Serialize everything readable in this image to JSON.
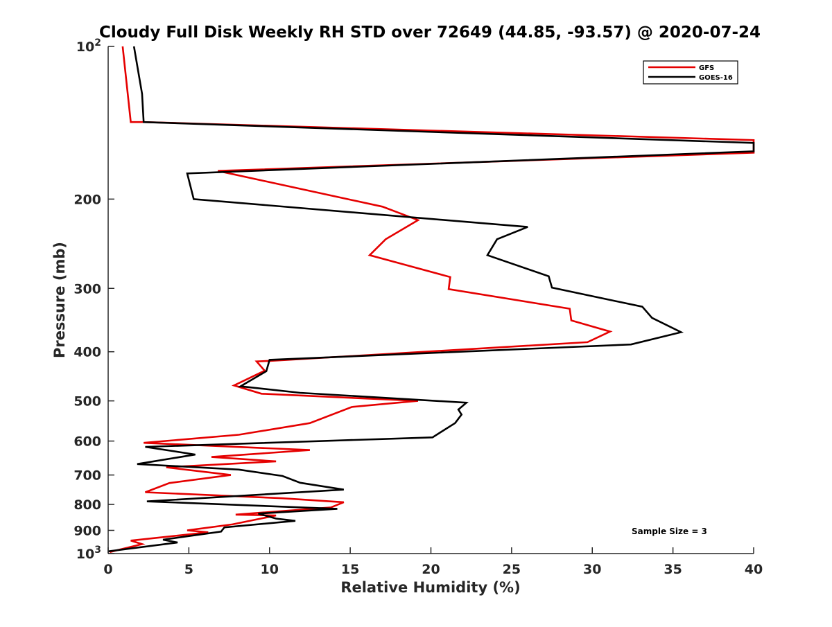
{
  "chart_data": {
    "type": "line",
    "title": "Cloudy Full Disk Weekly RH STD over 72649 (44.85, -93.57) @ 2020-07-24",
    "xlabel": "Relative Humidity (%)",
    "ylabel": "Pressure (mb)",
    "xlim": [
      0,
      40
    ],
    "ylim": [
      100,
      1000
    ],
    "yscale": "log",
    "yreversed": true,
    "xticks": [
      0,
      5,
      10,
      15,
      20,
      25,
      30,
      35,
      40
    ],
    "yticks": [
      {
        "value": 100,
        "base": "10",
        "exp": "2"
      },
      {
        "value": 200,
        "label": "200"
      },
      {
        "value": 300,
        "label": "300"
      },
      {
        "value": 400,
        "label": "400"
      },
      {
        "value": 500,
        "label": "500"
      },
      {
        "value": 600,
        "label": "600"
      },
      {
        "value": 700,
        "label": "700"
      },
      {
        "value": 800,
        "label": "800"
      },
      {
        "value": 900,
        "label": "900"
      },
      {
        "value": 1000,
        "base": "10",
        "exp": "3"
      }
    ],
    "legend_position": "top-right",
    "annotation": "Sample Size = 3",
    "series": [
      {
        "name": "GFS",
        "color": "#e50000",
        "points": [
          [
            0.9,
            100
          ],
          [
            1.4,
            141
          ],
          [
            2.2,
            141
          ],
          [
            40,
            153
          ],
          [
            40,
            162
          ],
          [
            6.8,
            176
          ],
          [
            17,
            207
          ],
          [
            19.2,
            220
          ],
          [
            17.2,
            240
          ],
          [
            16.2,
            258
          ],
          [
            21.2,
            285
          ],
          [
            21.1,
            301
          ],
          [
            28.6,
            329
          ],
          [
            28.7,
            347
          ],
          [
            31.1,
            365
          ],
          [
            29.7,
            383
          ],
          [
            10,
            417
          ],
          [
            9.2,
            418
          ],
          [
            9.7,
            436
          ],
          [
            7.8,
            466
          ],
          [
            9.5,
            484
          ],
          [
            19.2,
            500
          ],
          [
            15.1,
            514
          ],
          [
            12.5,
            553
          ],
          [
            8.1,
            583
          ],
          [
            2.2,
            605
          ],
          [
            12.5,
            625
          ],
          [
            6.4,
            645
          ],
          [
            10.4,
            658
          ],
          [
            3.6,
            676
          ],
          [
            7.6,
            700
          ],
          [
            3.8,
            726
          ],
          [
            2.3,
            757
          ],
          [
            10.8,
            778
          ],
          [
            14.6,
            792
          ],
          [
            13.8,
            811
          ],
          [
            7.9,
            838
          ],
          [
            10.4,
            841
          ],
          [
            7.7,
            876
          ],
          [
            4.9,
            900
          ],
          [
            6.2,
            908
          ],
          [
            1.4,
            943
          ],
          [
            2.1,
            958
          ],
          [
            0.1,
            993
          ]
        ]
      },
      {
        "name": "GOES-16",
        "color": "#000000",
        "points": [
          [
            1.6,
            100
          ],
          [
            2.1,
            124
          ],
          [
            2.2,
            141
          ],
          [
            40,
            155
          ],
          [
            40,
            161
          ],
          [
            4.9,
            178
          ],
          [
            5.3,
            200
          ],
          [
            26,
            227
          ],
          [
            24.1,
            240
          ],
          [
            23.5,
            258
          ],
          [
            27.3,
            284
          ],
          [
            27.5,
            299
          ],
          [
            33.1,
            326
          ],
          [
            33.7,
            343
          ],
          [
            35.5,
            366
          ],
          [
            32.4,
            387
          ],
          [
            10,
            415
          ],
          [
            9.8,
            437
          ],
          [
            8.2,
            468
          ],
          [
            11.9,
            482
          ],
          [
            22.2,
            504
          ],
          [
            21.7,
            520
          ],
          [
            21.9,
            532
          ],
          [
            21.5,
            553
          ],
          [
            20.1,
            590
          ],
          [
            2.3,
            616
          ],
          [
            5.4,
            638
          ],
          [
            1.8,
            666
          ],
          [
            8.1,
            683
          ],
          [
            10.8,
            703
          ],
          [
            11.9,
            725
          ],
          [
            14.6,
            748
          ],
          [
            2.4,
            789
          ],
          [
            14.2,
            816
          ],
          [
            9.3,
            834
          ],
          [
            10.4,
            853
          ],
          [
            11.6,
            862
          ],
          [
            7.2,
            888
          ],
          [
            7,
            905
          ],
          [
            3.4,
            939
          ],
          [
            4.3,
            951
          ],
          [
            0,
            990
          ]
        ]
      }
    ]
  }
}
